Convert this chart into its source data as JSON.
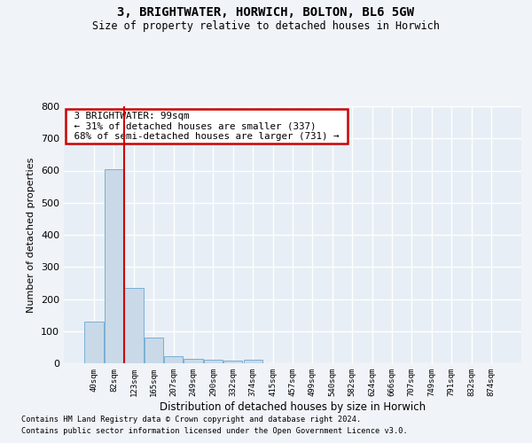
{
  "title": "3, BRIGHTWATER, HORWICH, BOLTON, BL6 5GW",
  "subtitle": "Size of property relative to detached houses in Horwich",
  "xlabel": "Distribution of detached houses by size in Horwich",
  "ylabel": "Number of detached properties",
  "bar_color": "#c9d9e8",
  "bar_edge_color": "#7aafd4",
  "background_color": "#e8eef5",
  "grid_color": "#ffffff",
  "fig_bg_color": "#f0f4f8",
  "categories": [
    "40sqm",
    "82sqm",
    "123sqm",
    "165sqm",
    "207sqm",
    "249sqm",
    "290sqm",
    "332sqm",
    "374sqm",
    "415sqm",
    "457sqm",
    "499sqm",
    "540sqm",
    "582sqm",
    "624sqm",
    "666sqm",
    "707sqm",
    "749sqm",
    "791sqm",
    "832sqm",
    "874sqm"
  ],
  "values": [
    130,
    605,
    235,
    80,
    22,
    14,
    10,
    8,
    10,
    0,
    0,
    0,
    0,
    0,
    0,
    0,
    0,
    0,
    0,
    0,
    0
  ],
  "ylim": [
    0,
    800
  ],
  "yticks": [
    0,
    100,
    200,
    300,
    400,
    500,
    600,
    700,
    800
  ],
  "property_line_x": 1.5,
  "property_size": "99sqm",
  "property_name": "3 BRIGHTWATER",
  "pct_smaller": "31%",
  "n_smaller": 337,
  "pct_larger_semi": "68%",
  "n_larger_semi": 731,
  "annotation_box_color": "#ffffff",
  "annotation_box_edge": "#cc0000",
  "red_line_color": "#cc0000",
  "footer_line1": "Contains HM Land Registry data © Crown copyright and database right 2024.",
  "footer_line2": "Contains public sector information licensed under the Open Government Licence v3.0."
}
